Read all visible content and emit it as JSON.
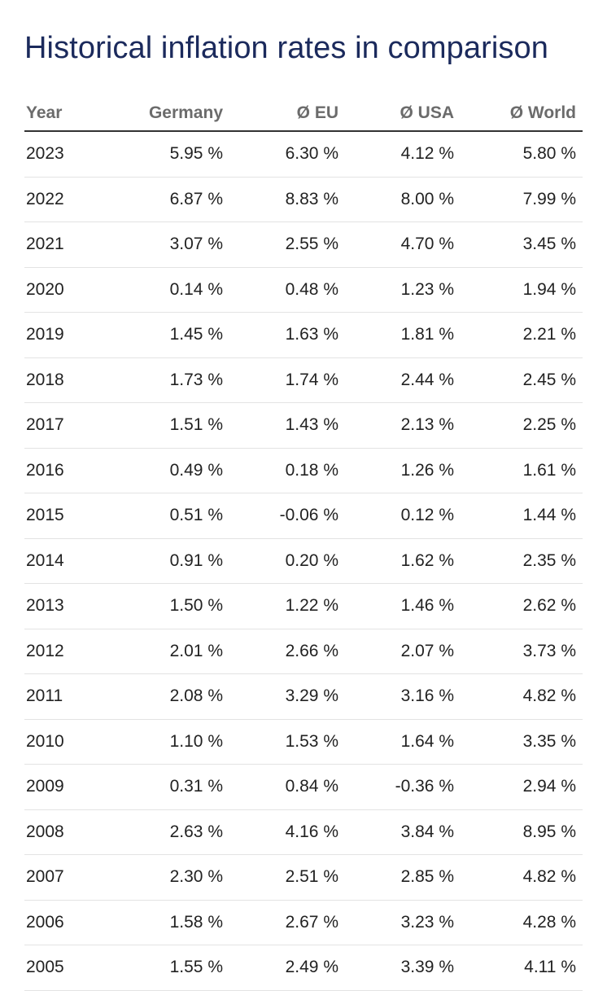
{
  "title": "Historical inflation rates in comparison",
  "table": {
    "headers": [
      "Year",
      "Germany",
      "Ø EU",
      "Ø USA",
      "Ø World"
    ],
    "rows": [
      [
        "2023",
        "5.95 %",
        "6.30 %",
        "4.12 %",
        "5.80 %"
      ],
      [
        "2022",
        "6.87 %",
        "8.83 %",
        "8.00 %",
        "7.99 %"
      ],
      [
        "2021",
        "3.07 %",
        "2.55 %",
        "4.70 %",
        "3.45 %"
      ],
      [
        "2020",
        "0.14 %",
        "0.48 %",
        "1.23 %",
        "1.94 %"
      ],
      [
        "2019",
        "1.45 %",
        "1.63 %",
        "1.81 %",
        "2.21 %"
      ],
      [
        "2018",
        "1.73 %",
        "1.74 %",
        "2.44 %",
        "2.45 %"
      ],
      [
        "2017",
        "1.51 %",
        "1.43 %",
        "2.13 %",
        "2.25 %"
      ],
      [
        "2016",
        "0.49 %",
        "0.18 %",
        "1.26 %",
        "1.61 %"
      ],
      [
        "2015",
        "0.51 %",
        "-0.06 %",
        "0.12 %",
        "1.44 %"
      ],
      [
        "2014",
        "0.91 %",
        "0.20 %",
        "1.62 %",
        "2.35 %"
      ],
      [
        "2013",
        "1.50 %",
        "1.22 %",
        "1.46 %",
        "2.62 %"
      ],
      [
        "2012",
        "2.01 %",
        "2.66 %",
        "2.07 %",
        "3.73 %"
      ],
      [
        "2011",
        "2.08 %",
        "3.29 %",
        "3.16 %",
        "4.82 %"
      ],
      [
        "2010",
        "1.10 %",
        "1.53 %",
        "1.64 %",
        "3.35 %"
      ],
      [
        "2009",
        "0.31 %",
        "0.84 %",
        "-0.36 %",
        "2.94 %"
      ],
      [
        "2008",
        "2.63 %",
        "4.16 %",
        "3.84 %",
        "8.95 %"
      ],
      [
        "2007",
        "2.30 %",
        "2.51 %",
        "2.85 %",
        "4.82 %"
      ],
      [
        "2006",
        "1.58 %",
        "2.67 %",
        "3.23 %",
        "4.28 %"
      ],
      [
        "2005",
        "1.55 %",
        "2.49 %",
        "3.39 %",
        "4.11 %"
      ]
    ]
  },
  "colors": {
    "title": "#1b2a5c",
    "header_text": "#6b6b6b",
    "header_rule": "#333333",
    "row_divider": "#e3e3e3",
    "cell_text": "#222222"
  }
}
